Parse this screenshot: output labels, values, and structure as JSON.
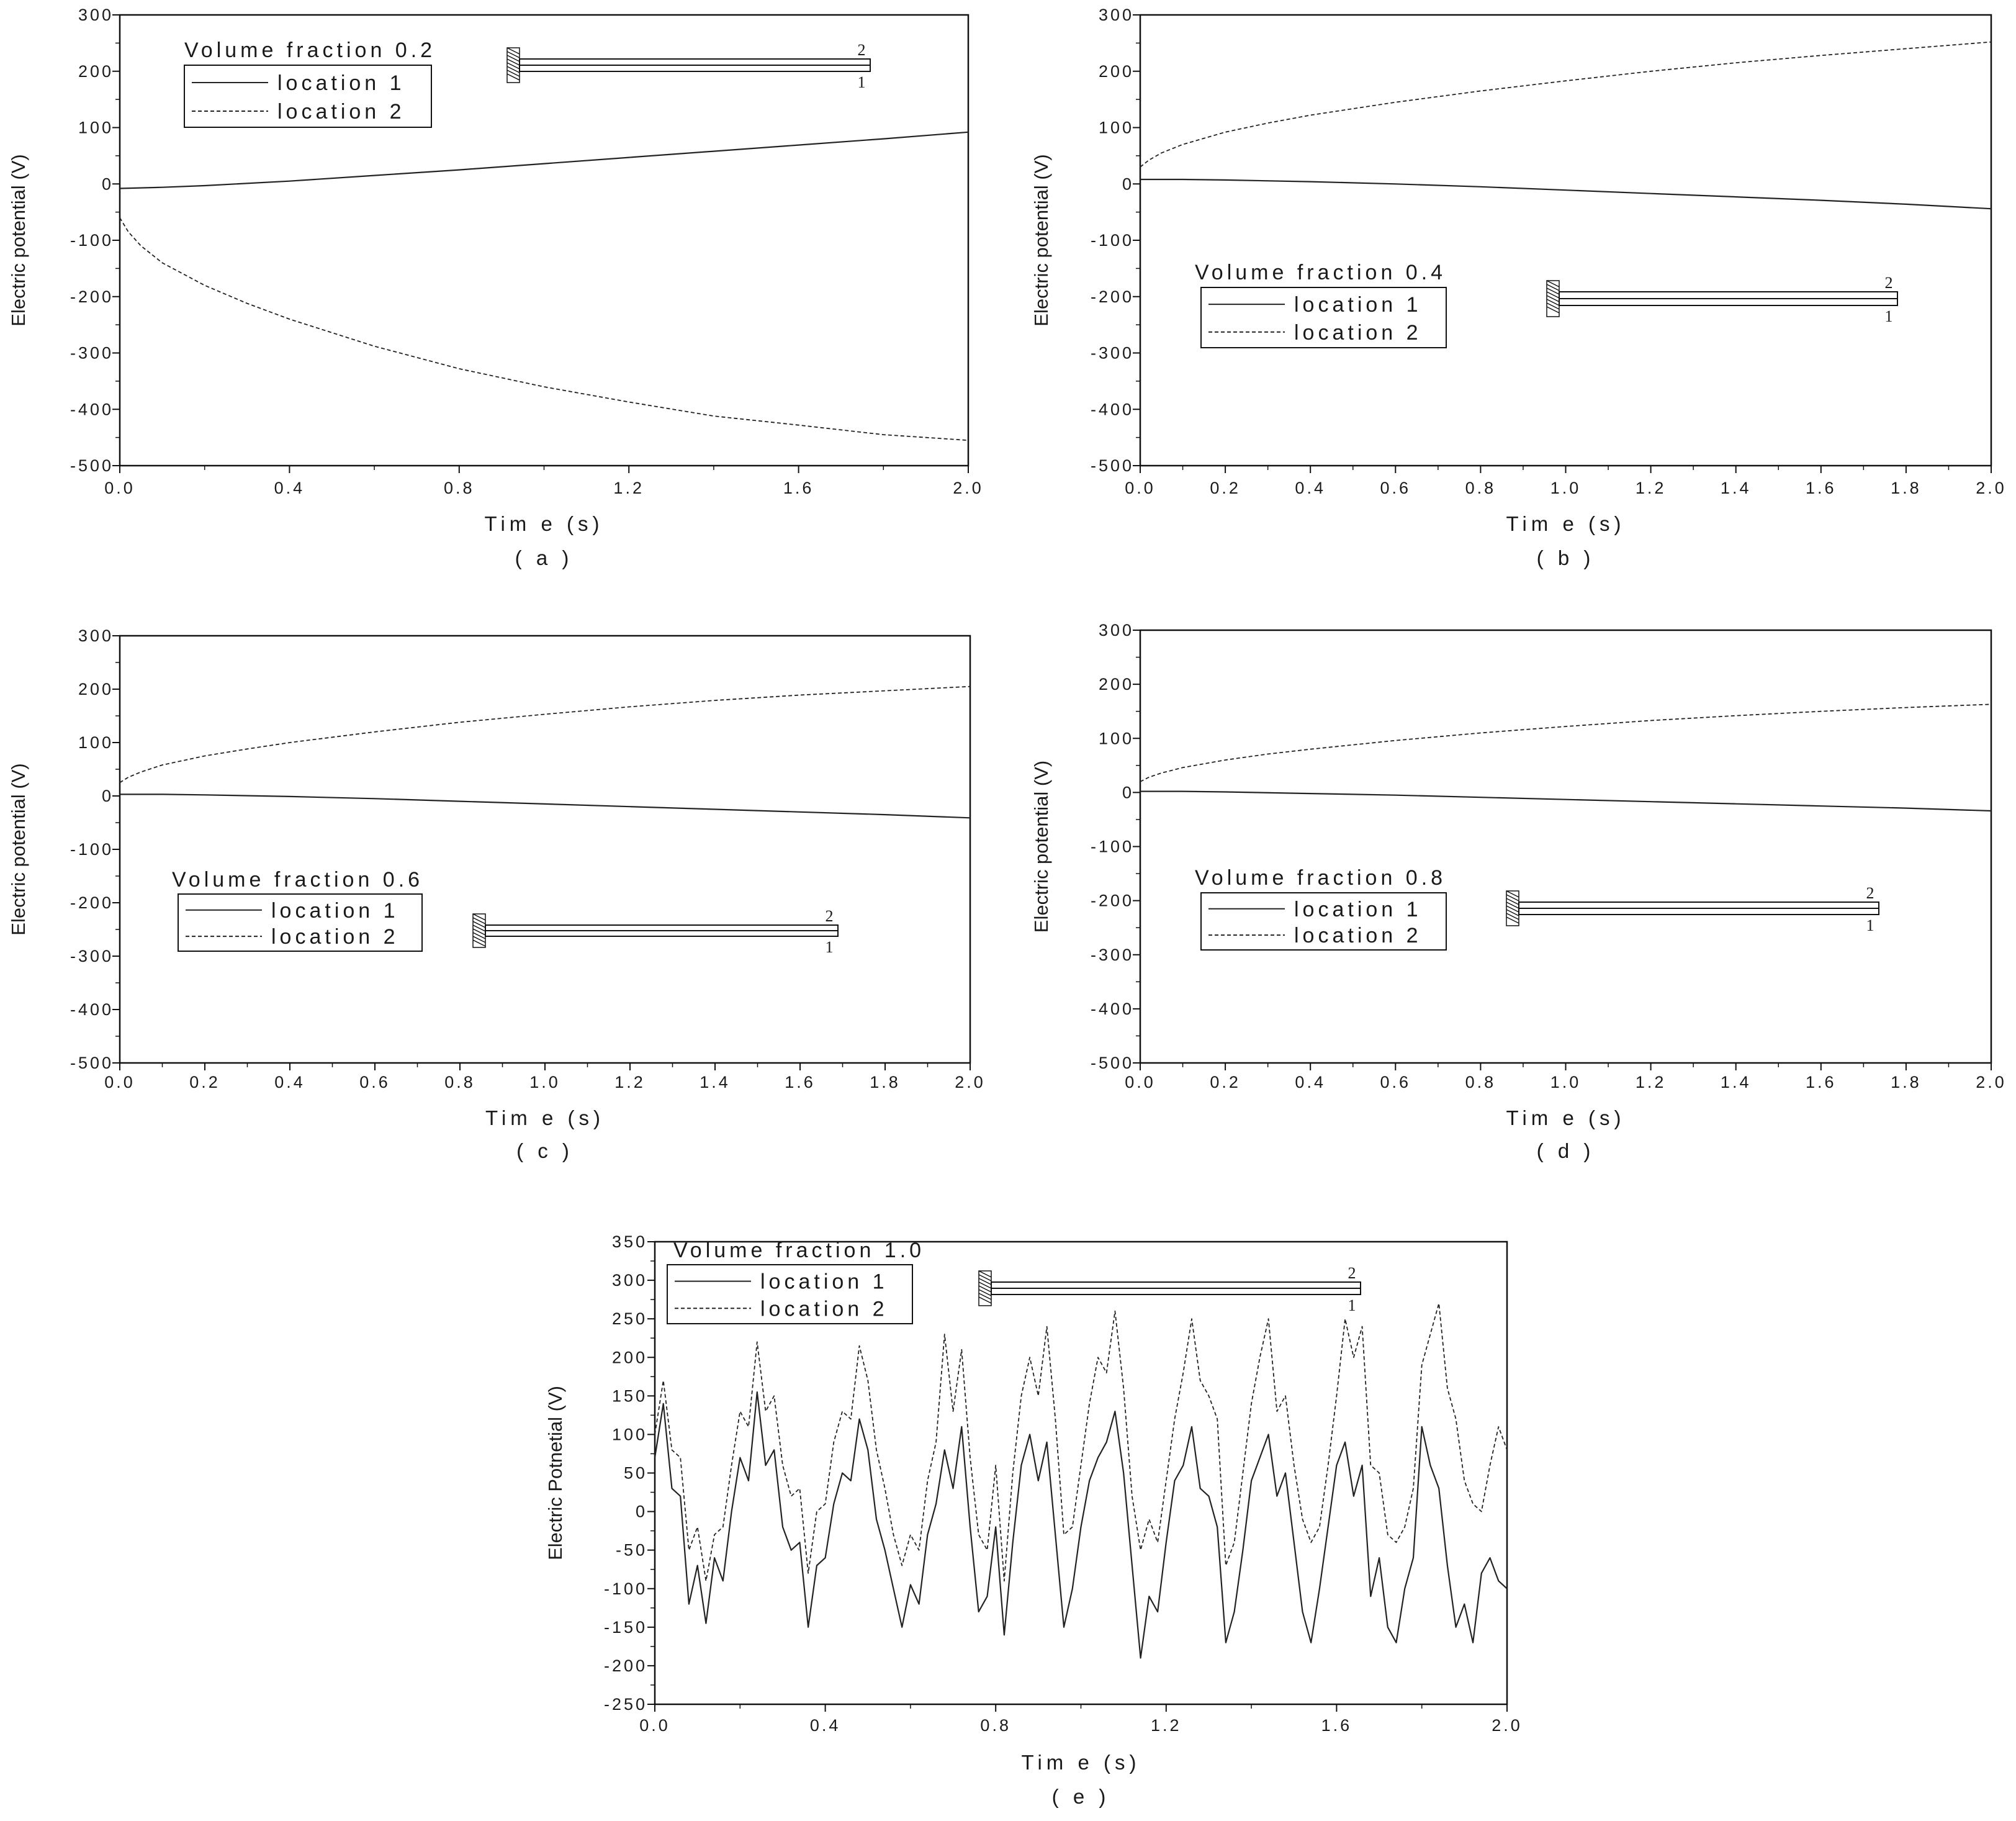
{
  "chart_data": [
    {
      "type": "line",
      "panel_label": "( a )",
      "xlabel": "Tim e (s)",
      "ylabel": "Electric potential (V)",
      "xlim": [
        0,
        2.0
      ],
      "ylim": [
        -500,
        300
      ],
      "xticks": [
        0.0,
        0.4,
        0.8,
        1.2,
        1.6,
        2.0
      ],
      "xtick_labels": [
        "0.0",
        "0.4",
        "0.8",
        "1.2",
        "1.6",
        "2.0"
      ],
      "yticks": [
        -500,
        -400,
        -300,
        -200,
        -100,
        0,
        100,
        200,
        300
      ],
      "ytick_labels": [
        "-500",
        "-400",
        "-300",
        "-200",
        "-100",
        "0",
        "100",
        "200",
        "300"
      ],
      "legend_title": "Volume fraction 0.2",
      "legend_position": "top-left",
      "beam_labels": [
        "2",
        "1"
      ],
      "series": [
        {
          "name": "location 1",
          "style": "solid",
          "x": [
            0.0,
            0.1,
            0.2,
            0.4,
            0.6,
            0.8,
            1.0,
            1.2,
            1.4,
            1.6,
            1.8,
            2.0
          ],
          "y": [
            -8,
            -6,
            -3,
            5,
            15,
            25,
            36,
            47,
            58,
            69,
            80,
            92
          ]
        },
        {
          "name": "location 2",
          "style": "dashed",
          "x": [
            0.0,
            0.02,
            0.05,
            0.1,
            0.2,
            0.3,
            0.4,
            0.6,
            0.8,
            1.0,
            1.2,
            1.4,
            1.6,
            1.8,
            2.0
          ],
          "y": [
            -60,
            -85,
            -110,
            -140,
            -180,
            -212,
            -240,
            -288,
            -328,
            -360,
            -387,
            -412,
            -428,
            -445,
            -455
          ]
        }
      ]
    },
    {
      "type": "line",
      "panel_label": "( b )",
      "xlabel": "Tim e (s)",
      "ylabel": "Electric potential (V)",
      "xlim": [
        0,
        2.0
      ],
      "ylim": [
        -500,
        300
      ],
      "xticks": [
        0.0,
        0.2,
        0.4,
        0.6,
        0.8,
        1.0,
        1.2,
        1.4,
        1.6,
        1.8,
        2.0
      ],
      "xtick_labels": [
        "0.0",
        "0.2",
        "0.4",
        "0.6",
        "0.8",
        "1.0",
        "1.2",
        "1.4",
        "1.6",
        "1.8",
        "2.0"
      ],
      "yticks": [
        -500,
        -400,
        -300,
        -200,
        -100,
        0,
        100,
        200,
        300
      ],
      "ytick_labels": [
        "-500",
        "-400",
        "-300",
        "-200",
        "-100",
        "0",
        "100",
        "200",
        "300"
      ],
      "legend_title": "Volume fraction 0.4",
      "legend_position": "center-left",
      "beam_labels": [
        "2",
        "1"
      ],
      "series": [
        {
          "name": "location 1",
          "style": "solid",
          "x": [
            0.0,
            0.1,
            0.2,
            0.4,
            0.6,
            0.8,
            1.0,
            1.2,
            1.4,
            1.6,
            1.8,
            2.0
          ],
          "y": [
            8,
            8,
            7,
            4,
            0,
            -5,
            -11,
            -17,
            -23,
            -29,
            -36,
            -44
          ]
        },
        {
          "name": "location 2",
          "style": "dashed",
          "x": [
            0.0,
            0.02,
            0.05,
            0.1,
            0.2,
            0.3,
            0.4,
            0.6,
            0.8,
            1.0,
            1.2,
            1.4,
            1.6,
            1.8,
            2.0
          ],
          "y": [
            30,
            42,
            55,
            70,
            92,
            108,
            122,
            145,
            165,
            183,
            200,
            215,
            228,
            240,
            252
          ]
        }
      ]
    },
    {
      "type": "line",
      "panel_label": "( c )",
      "xlabel": "Tim e (s)",
      "ylabel": "Electric potential (V)",
      "xlim": [
        0,
        2.0
      ],
      "ylim": [
        -500,
        300
      ],
      "xticks": [
        0.0,
        0.2,
        0.4,
        0.6,
        0.8,
        1.0,
        1.2,
        1.4,
        1.6,
        1.8,
        2.0
      ],
      "xtick_labels": [
        "0.0",
        "0.2",
        "0.4",
        "0.6",
        "0.8",
        "1.0",
        "1.2",
        "1.4",
        "1.6",
        "1.8",
        "2.0"
      ],
      "yticks": [
        -500,
        -400,
        -300,
        -200,
        -100,
        0,
        100,
        200,
        300
      ],
      "ytick_labels": [
        "-500",
        "-400",
        "-300",
        "-200",
        "-100",
        "0",
        "100",
        "200",
        "300"
      ],
      "legend_title": "Volume fraction 0.6",
      "legend_position": "center-left",
      "beam_labels": [
        "2",
        "1"
      ],
      "series": [
        {
          "name": "location 1",
          "style": "solid",
          "x": [
            0.0,
            0.1,
            0.2,
            0.4,
            0.6,
            0.8,
            1.0,
            1.2,
            1.4,
            1.6,
            1.8,
            2.0
          ],
          "y": [
            3,
            3,
            2,
            -1,
            -5,
            -10,
            -15,
            -20,
            -25,
            -30,
            -35,
            -41
          ]
        },
        {
          "name": "location 2",
          "style": "dashed",
          "x": [
            0.0,
            0.02,
            0.05,
            0.1,
            0.2,
            0.3,
            0.4,
            0.6,
            0.8,
            1.0,
            1.2,
            1.4,
            1.6,
            1.8,
            2.0
          ],
          "y": [
            25,
            35,
            45,
            58,
            75,
            88,
            100,
            120,
            138,
            153,
            167,
            179,
            189,
            197,
            205
          ]
        }
      ]
    },
    {
      "type": "line",
      "panel_label": "( d )",
      "xlabel": "Tim e (s)",
      "ylabel": "Electric potential (V)",
      "xlim": [
        0,
        2.0
      ],
      "ylim": [
        -500,
        300
      ],
      "xticks": [
        0.0,
        0.2,
        0.4,
        0.6,
        0.8,
        1.0,
        1.2,
        1.4,
        1.6,
        1.8,
        2.0
      ],
      "xtick_labels": [
        "0.0",
        "0.2",
        "0.4",
        "0.6",
        "0.8",
        "1.0",
        "1.2",
        "1.4",
        "1.6",
        "1.8",
        "2.0"
      ],
      "yticks": [
        -500,
        -400,
        -300,
        -200,
        -100,
        0,
        100,
        200,
        300
      ],
      "ytick_labels": [
        "-500",
        "-400",
        "-300",
        "-200",
        "-100",
        "0",
        "100",
        "200",
        "300"
      ],
      "legend_title": "Volume fraction 0.8",
      "legend_position": "center-left",
      "beam_labels": [
        "2",
        "1"
      ],
      "series": [
        {
          "name": "location 1",
          "style": "solid",
          "x": [
            0.0,
            0.1,
            0.2,
            0.4,
            0.6,
            0.8,
            1.0,
            1.2,
            1.4,
            1.6,
            1.8,
            2.0
          ],
          "y": [
            2,
            2,
            1,
            -2,
            -5,
            -9,
            -13,
            -17,
            -21,
            -25,
            -29,
            -34
          ]
        },
        {
          "name": "location 2",
          "style": "dashed",
          "x": [
            0.0,
            0.02,
            0.05,
            0.1,
            0.2,
            0.3,
            0.4,
            0.6,
            0.8,
            1.0,
            1.2,
            1.4,
            1.6,
            1.8,
            2.0
          ],
          "y": [
            20,
            28,
            36,
            46,
            60,
            71,
            80,
            96,
            110,
            122,
            133,
            142,
            150,
            157,
            163
          ]
        }
      ]
    },
    {
      "type": "line",
      "panel_label": "( e )",
      "xlabel": "Tim e (s)",
      "ylabel": "Electric Potnetial (V)",
      "xlim": [
        0,
        2.0
      ],
      "ylim": [
        -250,
        350
      ],
      "xticks": [
        0.0,
        0.4,
        0.8,
        1.2,
        1.6,
        2.0
      ],
      "xtick_labels": [
        "0.0",
        "0.4",
        "0.8",
        "1.2",
        "1.6",
        "2.0"
      ],
      "yticks": [
        -250,
        -200,
        -150,
        -100,
        -50,
        0,
        50,
        100,
        150,
        200,
        250,
        300,
        350
      ],
      "ytick_labels": [
        "-250",
        "-200",
        "-150",
        "-100",
        "-50",
        "0",
        "50",
        "100",
        "150",
        "200",
        "250",
        "300",
        "350"
      ],
      "legend_title": "Volume fraction 1.0",
      "legend_position": "top-left",
      "beam_labels": [
        "2",
        "1"
      ],
      "series": [
        {
          "name": "location 1",
          "style": "solid",
          "x": [
            0.0,
            0.02,
            0.04,
            0.06,
            0.08,
            0.1,
            0.12,
            0.14,
            0.16,
            0.18,
            0.2,
            0.22,
            0.24,
            0.26,
            0.28,
            0.3,
            0.32,
            0.34,
            0.36,
            0.38,
            0.4,
            0.42,
            0.44,
            0.46,
            0.48,
            0.5,
            0.52,
            0.54,
            0.56,
            0.58,
            0.6,
            0.62,
            0.64,
            0.66,
            0.68,
            0.7,
            0.72,
            0.74,
            0.76,
            0.78,
            0.8,
            0.82,
            0.84,
            0.86,
            0.88,
            0.9,
            0.92,
            0.94,
            0.96,
            0.98,
            1.0,
            1.02,
            1.04,
            1.06,
            1.08,
            1.1,
            1.12,
            1.14,
            1.16,
            1.18,
            1.2,
            1.22,
            1.24,
            1.26,
            1.28,
            1.3,
            1.32,
            1.34,
            1.36,
            1.38,
            1.4,
            1.42,
            1.44,
            1.46,
            1.48,
            1.5,
            1.52,
            1.54,
            1.56,
            1.58,
            1.6,
            1.62,
            1.64,
            1.66,
            1.68,
            1.7,
            1.72,
            1.74,
            1.76,
            1.78,
            1.8,
            1.82,
            1.84,
            1.86,
            1.88,
            1.9,
            1.92,
            1.94,
            1.96,
            1.98,
            2.0
          ],
          "y": [
            70,
            140,
            30,
            20,
            -120,
            -70,
            -145,
            -60,
            -90,
            0,
            70,
            40,
            155,
            60,
            80,
            -20,
            -50,
            -40,
            -150,
            -70,
            -60,
            10,
            50,
            40,
            120,
            80,
            -10,
            -50,
            -100,
            -150,
            -95,
            -120,
            -30,
            10,
            80,
            30,
            110,
            -20,
            -130,
            -110,
            -20,
            -160,
            -40,
            60,
            100,
            40,
            90,
            -30,
            -150,
            -100,
            -20,
            40,
            70,
            90,
            130,
            50,
            -70,
            -190,
            -110,
            -130,
            -40,
            40,
            60,
            110,
            30,
            20,
            -20,
            -170,
            -130,
            -50,
            40,
            70,
            100,
            20,
            50,
            -40,
            -130,
            -170,
            -100,
            -20,
            60,
            90,
            20,
            60,
            -110,
            -60,
            -150,
            -170,
            -100,
            -60,
            110,
            60,
            30,
            -70,
            -150,
            -120,
            -170,
            -80,
            -60,
            -90,
            -100
          ]
        },
        {
          "name": "location 2",
          "style": "dashed",
          "x": [
            0.0,
            0.02,
            0.04,
            0.06,
            0.08,
            0.1,
            0.12,
            0.14,
            0.16,
            0.18,
            0.2,
            0.22,
            0.24,
            0.26,
            0.28,
            0.3,
            0.32,
            0.34,
            0.36,
            0.38,
            0.4,
            0.42,
            0.44,
            0.46,
            0.48,
            0.5,
            0.52,
            0.54,
            0.56,
            0.58,
            0.6,
            0.62,
            0.64,
            0.66,
            0.68,
            0.7,
            0.72,
            0.74,
            0.76,
            0.78,
            0.8,
            0.82,
            0.84,
            0.86,
            0.88,
            0.9,
            0.92,
            0.94,
            0.96,
            0.98,
            1.0,
            1.02,
            1.04,
            1.06,
            1.08,
            1.1,
            1.12,
            1.14,
            1.16,
            1.18,
            1.2,
            1.22,
            1.24,
            1.26,
            1.28,
            1.3,
            1.32,
            1.34,
            1.36,
            1.38,
            1.4,
            1.42,
            1.44,
            1.46,
            1.48,
            1.5,
            1.52,
            1.54,
            1.56,
            1.58,
            1.6,
            1.62,
            1.64,
            1.66,
            1.68,
            1.7,
            1.72,
            1.74,
            1.76,
            1.78,
            1.8,
            1.82,
            1.84,
            1.86,
            1.88,
            1.9,
            1.92,
            1.94,
            1.96,
            1.98,
            2.0
          ],
          "y": [
            100,
            170,
            80,
            70,
            -50,
            -20,
            -90,
            -30,
            -20,
            60,
            130,
            110,
            220,
            130,
            150,
            60,
            20,
            30,
            -80,
            0,
            10,
            90,
            130,
            120,
            215,
            170,
            80,
            30,
            -30,
            -70,
            -30,
            -50,
            40,
            90,
            230,
            130,
            210,
            70,
            -30,
            -50,
            60,
            -90,
            50,
            150,
            200,
            150,
            240,
            120,
            -30,
            -20,
            60,
            140,
            200,
            180,
            260,
            160,
            20,
            -50,
            -10,
            -40,
            40,
            120,
            180,
            250,
            170,
            150,
            120,
            -70,
            -40,
            50,
            140,
            200,
            250,
            130,
            150,
            60,
            -10,
            -40,
            -20,
            60,
            150,
            250,
            200,
            240,
            60,
            50,
            -30,
            -40,
            -20,
            30,
            190,
            230,
            270,
            160,
            120,
            40,
            10,
            0,
            60,
            110,
            80
          ]
        }
      ]
    }
  ]
}
